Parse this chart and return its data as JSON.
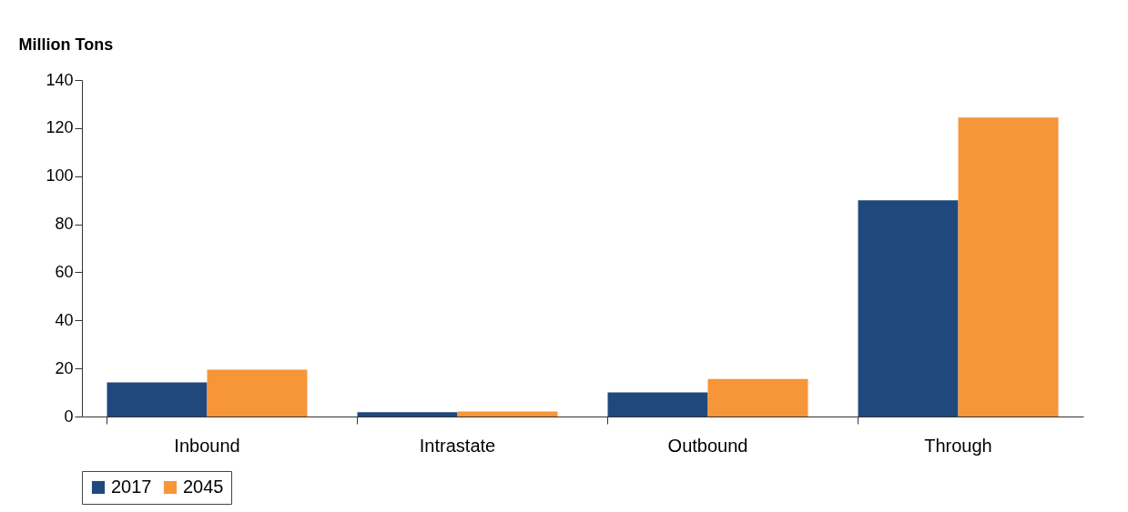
{
  "chart_data": {
    "type": "bar",
    "ylabel": "Million Tons",
    "categories": [
      "Inbound",
      "Intrastate",
      "Outbound",
      "Through"
    ],
    "series": [
      {
        "name": "2017",
        "color": "#1f497d",
        "values": [
          14.2,
          1.8,
          10,
          90
        ]
      },
      {
        "name": "2045",
        "color": "#f79539",
        "values": [
          19.5,
          2.1,
          15.6,
          124.4
        ]
      }
    ],
    "ylim": [
      0,
      140
    ],
    "yticks": [
      0,
      20,
      40,
      60,
      80,
      100,
      120,
      140
    ],
    "grid": false,
    "legend": "bottom"
  }
}
